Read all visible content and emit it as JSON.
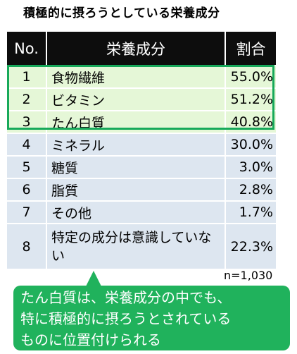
{
  "title": "積極的に摂ろうとしている栄養成分",
  "table": {
    "headers": [
      "No.",
      "栄養成分",
      "割合"
    ],
    "rows": [
      {
        "no": "1",
        "name": "食物繊維",
        "pct": "55.0%"
      },
      {
        "no": "2",
        "name": "ビタミン",
        "pct": "51.2%"
      },
      {
        "no": "3",
        "name": "たん白質",
        "pct": "40.8%"
      },
      {
        "no": "4",
        "name": "ミネラル",
        "pct": "30.0%"
      },
      {
        "no": "5",
        "name": "糖質",
        "pct": "3.0%"
      },
      {
        "no": "6",
        "name": "脂質",
        "pct": "2.8%"
      },
      {
        "no": "7",
        "name": "その他",
        "pct": "1.7%"
      },
      {
        "no": "8",
        "name": "特定の成分は意識していない",
        "pct": "22.3%"
      }
    ]
  },
  "sample_size": "n=1,030",
  "callout": {
    "lines": [
      "たん白質は、栄養成分の中でも、",
      "特に積極的に摂ろうとされている",
      "ものに位置付けられる"
    ]
  },
  "colors": {
    "header_bg": "#0d0d0d",
    "row_bg": "#dde6f0",
    "highlight_bg": "#e5f7d7",
    "highlight_border": "#17a95a",
    "callout_bg": "#20b25c"
  }
}
